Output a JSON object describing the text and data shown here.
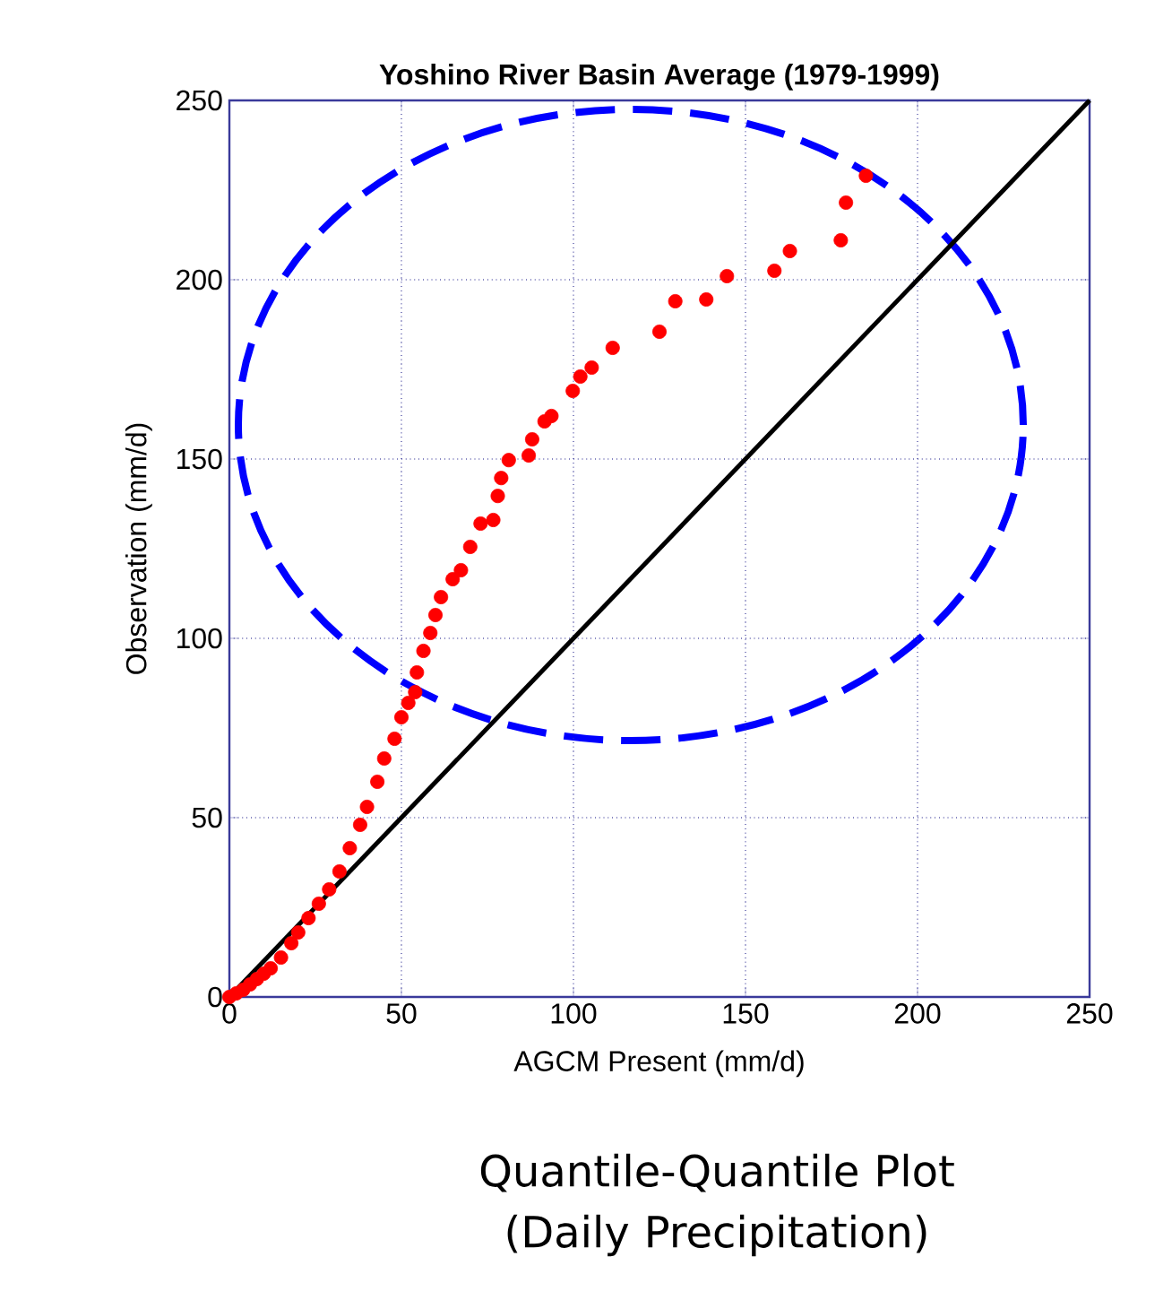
{
  "chart_data": {
    "type": "scatter",
    "title": "Yoshino River Basin Average (1979-1999)",
    "xlabel": "AGCM Present (mm/d)",
    "ylabel": "Observation (mm/d)",
    "xlim": [
      0,
      250
    ],
    "ylim": [
      0,
      250
    ],
    "xticks": [
      0,
      50,
      100,
      150,
      200,
      250
    ],
    "yticks": [
      0,
      50,
      100,
      150,
      200,
      250
    ],
    "grid": true,
    "marker": "circle",
    "series": [
      {
        "color": "#ff0000",
        "x": [
          0,
          2,
          4,
          6,
          8,
          10,
          12,
          15,
          18,
          20,
          23,
          26,
          29,
          32,
          35,
          38,
          40,
          43,
          45,
          48,
          50,
          52,
          54,
          54.5,
          56.4,
          58.4,
          59.9,
          61.5,
          64.9,
          67.3,
          70,
          73,
          76.7,
          78,
          79,
          81.2,
          87,
          88,
          91.6,
          93.6,
          99.8,
          102,
          105.3,
          111.4,
          125,
          129.6,
          138.6,
          144.6,
          158.4,
          162.9,
          177.7,
          179.2,
          185
        ],
        "values": [
          0,
          1,
          2,
          3.5,
          5,
          6.5,
          8,
          11,
          15,
          18,
          22,
          26,
          30,
          35,
          41.5,
          48,
          53,
          60,
          66.5,
          72,
          78,
          82,
          85,
          90.5,
          96.5,
          101.5,
          106.5,
          111.5,
          116.5,
          119,
          125.5,
          132,
          133,
          139.7,
          144.7,
          149.7,
          151,
          155.5,
          160.5,
          162,
          169,
          173,
          175.5,
          181,
          185.5,
          194,
          194.5,
          201,
          202.5,
          208,
          211,
          221.5,
          229
        ]
      },
      {
        "type": "line",
        "marker": "none",
        "color": "#000000",
        "x": [
          0,
          250
        ],
        "values": [
          0,
          250
        ]
      }
    ],
    "annotations": [
      "Quantile-Quantile Plot\n(Daily Precipitation)"
    ]
  }
}
